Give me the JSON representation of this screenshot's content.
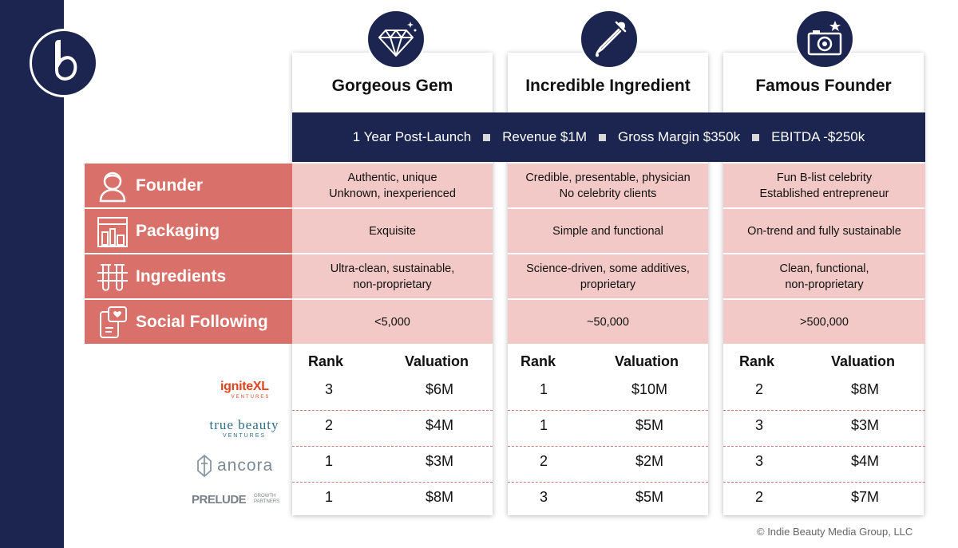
{
  "profiles": [
    {
      "title": "Gorgeous Gem",
      "icon": "diamond-icon"
    },
    {
      "title": "Incredible Ingredient",
      "icon": "dropper-icon"
    },
    {
      "title": "Famous Founder",
      "icon": "camera-icon"
    }
  ],
  "scenario": {
    "items": [
      "1 Year Post-Launch",
      "Revenue $1M",
      "Gross Margin $350k",
      "EBITDA -$250k"
    ]
  },
  "attributes": [
    {
      "label": "Founder",
      "icon": "founder-icon",
      "values": [
        [
          "Authentic, unique",
          "Unknown, inexperienced"
        ],
        [
          "Credible, presentable, physician",
          "No celebrity clients"
        ],
        [
          "Fun B-list celebrity",
          "Established entrepreneur"
        ]
      ]
    },
    {
      "label": "Packaging",
      "icon": "packaging-icon",
      "values": [
        [
          "Exquisite"
        ],
        [
          "Simple and functional"
        ],
        [
          "On-trend and fully sustainable"
        ]
      ]
    },
    {
      "label": "Ingredients",
      "icon": "test-tubes-icon",
      "values": [
        [
          "Ultra-clean, sustainable,",
          "non-proprietary"
        ],
        [
          "Science-driven, some additives,",
          "proprietary"
        ],
        [
          "Clean, functional,",
          "non-proprietary"
        ]
      ]
    },
    {
      "label": "Social Following",
      "icon": "social-phone-icon",
      "values": [
        [
          "<5,000"
        ],
        [
          "~50,000"
        ],
        [
          ">500,000"
        ]
      ]
    }
  ],
  "table_headers": {
    "rank": "Rank",
    "valuation": "Valuation"
  },
  "investors": [
    {
      "name": "igniteXL",
      "sub": "VENTURES",
      "results": [
        [
          "3",
          "$6M"
        ],
        [
          "1",
          "$10M"
        ],
        [
          "2",
          "$8M"
        ]
      ]
    },
    {
      "name": "true beauty",
      "sub": "VENTURES",
      "results": [
        [
          "2",
          "$4M"
        ],
        [
          "1",
          "$5M"
        ],
        [
          "3",
          "$3M"
        ]
      ]
    },
    {
      "name": "ancora",
      "sub": "",
      "results": [
        [
          "1",
          "$3M"
        ],
        [
          "2",
          "$2M"
        ],
        [
          "3",
          "$4M"
        ]
      ]
    },
    {
      "name": "PRELUDE",
      "sub": "GROWTH PARTNERS",
      "results": [
        [
          "1",
          "$8M"
        ],
        [
          "3",
          "$5M"
        ],
        [
          "2",
          "$7M"
        ]
      ]
    }
  ],
  "copyright": "© Indie Beauty Media Group, LLC",
  "colors": {
    "navy": "#1b2550",
    "coral": "#d9706a",
    "pink": "#f2c9c6",
    "ignite_orange": "#e0441f"
  }
}
